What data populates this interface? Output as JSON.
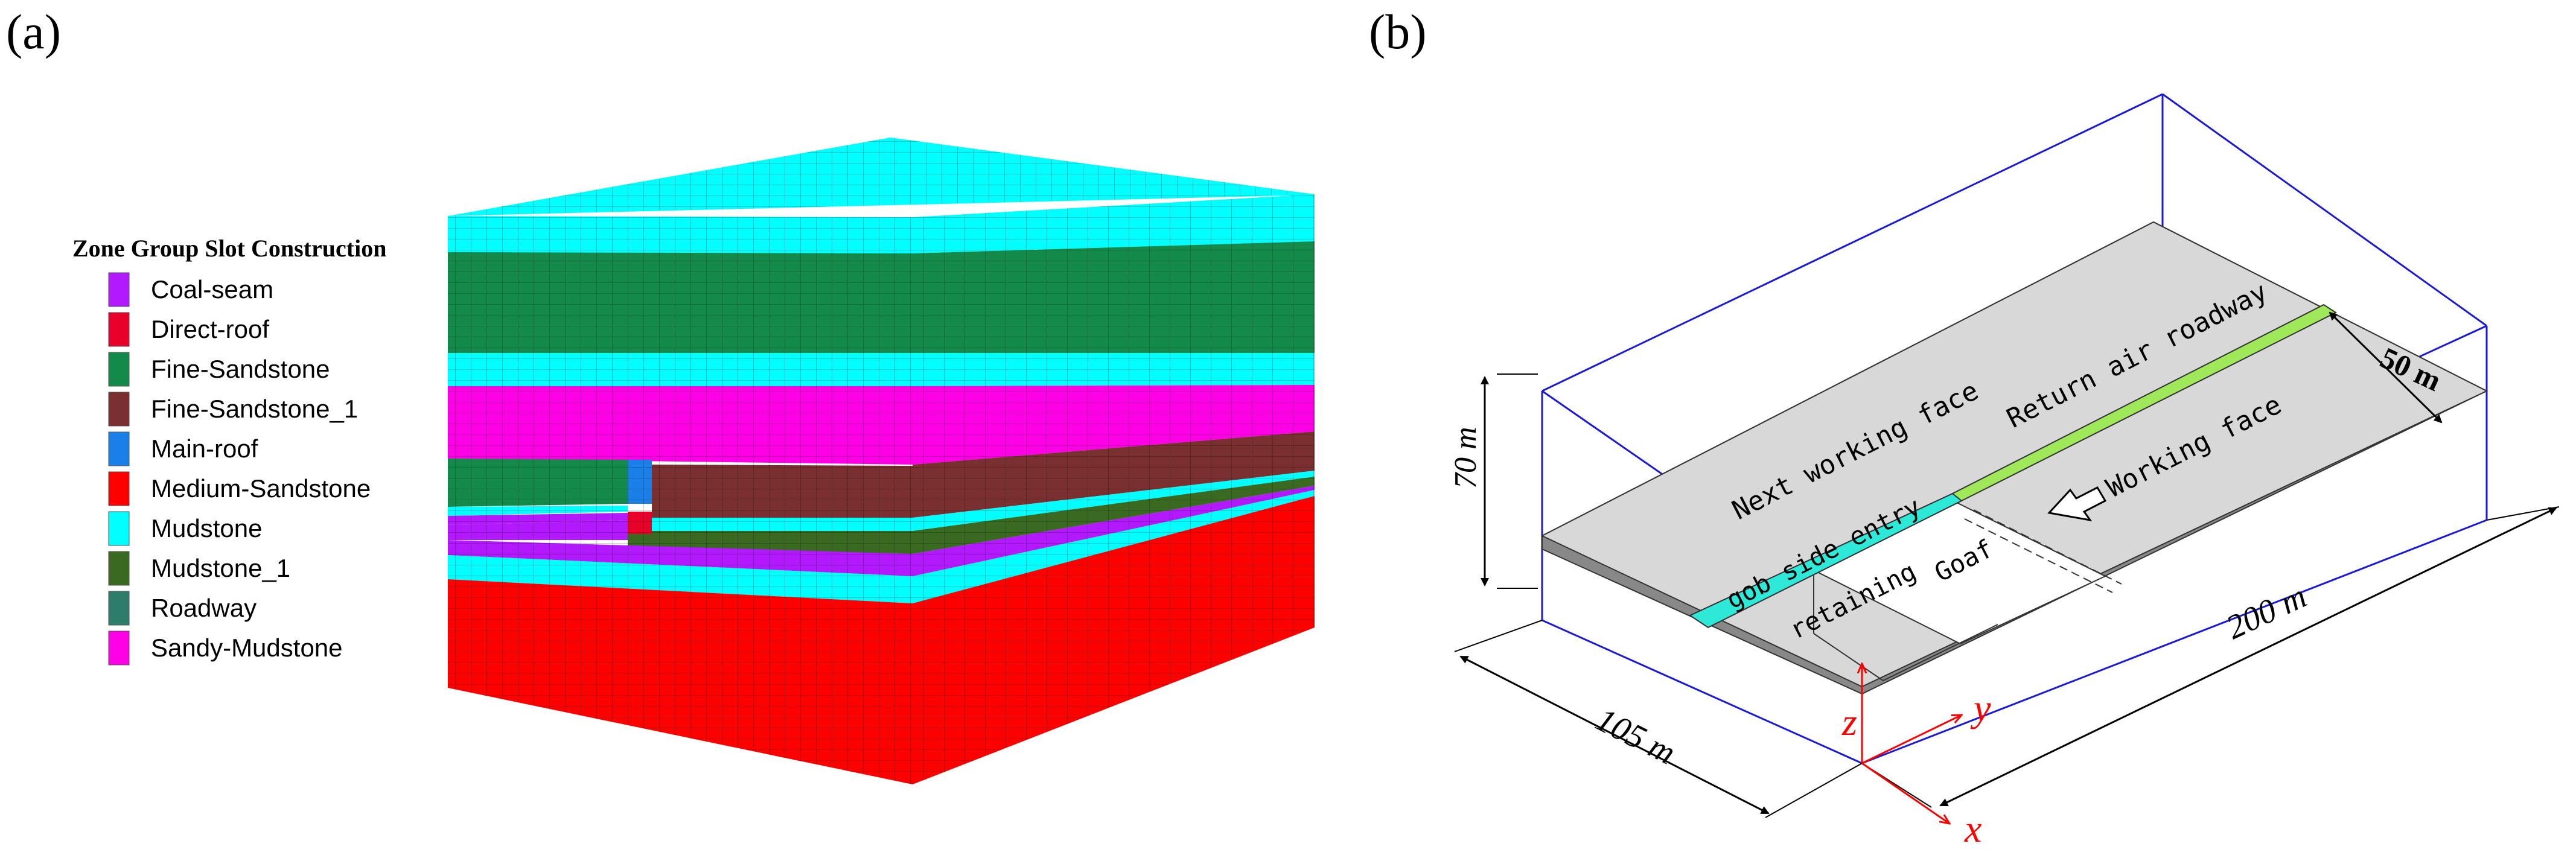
{
  "panels": {
    "a": {
      "label": "(a)"
    },
    "b": {
      "label": "(b)"
    }
  },
  "legend": {
    "title": "Zone Group Slot Construction",
    "items": [
      {
        "label": "Coal-seam",
        "color": "#b319ff"
      },
      {
        "label": "Direct-roof",
        "color": "#e8002a"
      },
      {
        "label": "Fine-Sandstone",
        "color": "#138a4a"
      },
      {
        "label": "Fine-Sandstone_1",
        "color": "#7a3030"
      },
      {
        "label": "Main-roof",
        "color": "#1a7fe8"
      },
      {
        "label": "Medium-Sandstone",
        "color": "#ff0000"
      },
      {
        "label": "Mudstone",
        "color": "#00ffff"
      },
      {
        "label": "Mudstone_1",
        "color": "#3a6a22"
      },
      {
        "label": "Roadway",
        "color": "#2e7c6a"
      },
      {
        "label": "Sandy-Mudstone",
        "color": "#ff00e6"
      }
    ]
  },
  "diagram": {
    "labels": {
      "next_working_face": "Next working face",
      "return_air_roadway": "Return air roadway",
      "gob_side_entry": "gob side entry",
      "retaining": "retaining",
      "goaf": "Goaf",
      "working_face": "Working face"
    },
    "dimensions": {
      "height": "70 m",
      "width": "105 m",
      "length": "200 m",
      "face_length": "50 m"
    },
    "axes": {
      "x": "x",
      "y": "y",
      "z": "z"
    },
    "colors": {
      "box": "#1a1ad6",
      "slab": "#d8d8d8",
      "roadway": "#2ee8d8",
      "return_air": "#9ee85a",
      "axis": "#ff0000"
    }
  }
}
